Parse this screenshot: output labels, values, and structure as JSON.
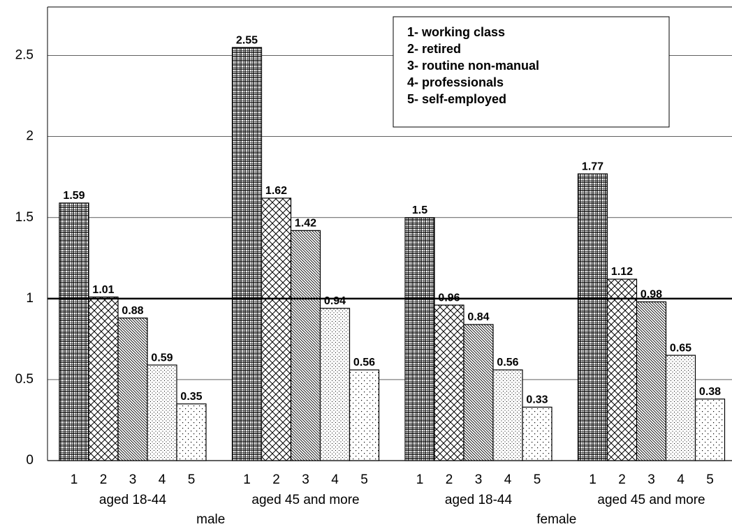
{
  "chart_data": {
    "type": "bar",
    "categories": [
      "aged 18-44",
      "aged 45 and more",
      "aged 18-44",
      "aged 45 and more"
    ],
    "sexes": [
      "male",
      "female"
    ],
    "bar_labels": [
      "1",
      "2",
      "3",
      "4",
      "5"
    ],
    "series": [
      {
        "name": "1- working class",
        "pattern": "grid",
        "values": [
          1.59,
          2.55,
          1.5,
          1.77
        ]
      },
      {
        "name": "2- retired",
        "pattern": "crosshatch",
        "values": [
          1.01,
          1.62,
          0.96,
          1.12
        ]
      },
      {
        "name": "3- routine non-manual",
        "pattern": "diagonal",
        "values": [
          0.88,
          1.42,
          0.84,
          0.98
        ]
      },
      {
        "name": "4- professionals",
        "pattern": "dense-dots",
        "values": [
          0.59,
          0.94,
          0.56,
          0.65
        ]
      },
      {
        "name": "5- self-employed",
        "pattern": "sparse-dots",
        "values": [
          0.35,
          0.56,
          0.33,
          0.38
        ]
      }
    ],
    "reference_line": 1,
    "ylim": [
      0,
      2.8
    ],
    "yticks": [
      0,
      0.5,
      1,
      1.5,
      2,
      2.5
    ],
    "grid": true
  }
}
